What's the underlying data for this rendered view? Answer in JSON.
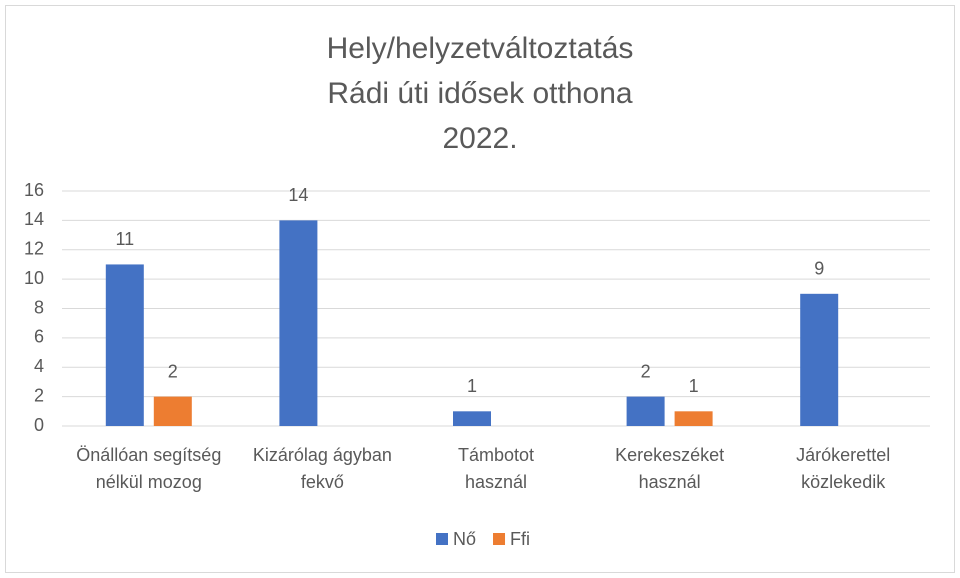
{
  "chart_data": {
    "type": "bar",
    "title": "Hely/helyzetváltoztatás\nRádi úti idősek otthona\n2022.",
    "categories": [
      "Önállóan segítség\nnélkül mozog",
      "Kizárólag ágyban\nfekvő",
      "Támbotot\nhasznál",
      "Kerekeszéket\nhasznál",
      "Járókerettel\nközlekedik"
    ],
    "series": [
      {
        "name": "Nő",
        "color": "#4472c4",
        "values": [
          11,
          14,
          1,
          2,
          9
        ]
      },
      {
        "name": "Ffi",
        "color": "#ed7d31",
        "values": [
          2,
          null,
          null,
          1,
          null
        ]
      }
    ],
    "ylim": [
      0,
      16
    ],
    "yticks": [
      0,
      2,
      4,
      6,
      8,
      10,
      12,
      14,
      16
    ],
    "grid": true,
    "legend": "bottom"
  }
}
